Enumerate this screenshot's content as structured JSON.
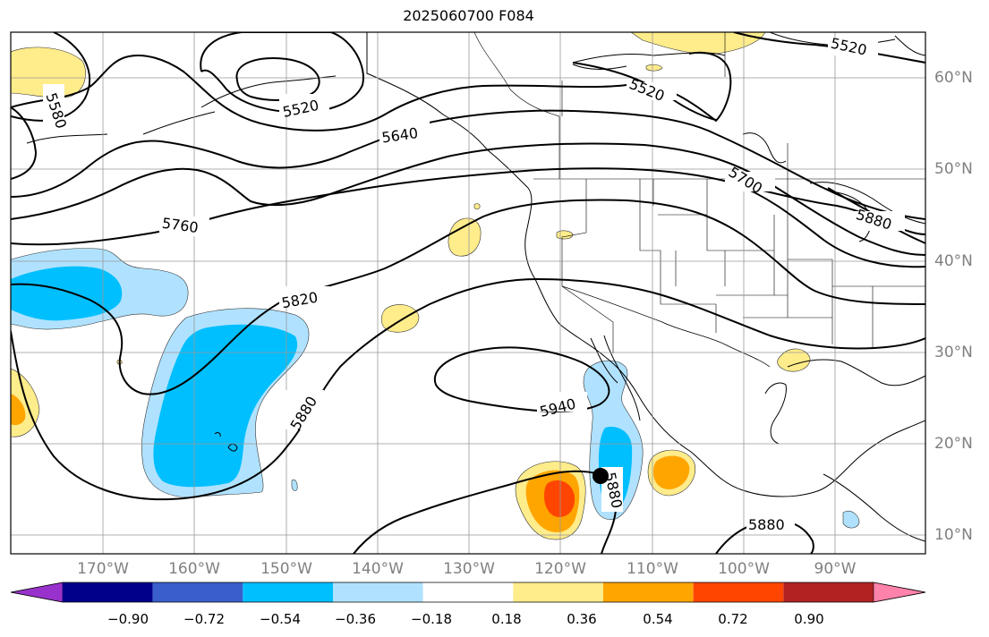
{
  "title": "2025060700 F084",
  "lon_labels": [
    "170°W",
    "160°W",
    "150°W",
    "140°W",
    "130°W",
    "120°W",
    "110°W",
    "100°W",
    "90°W"
  ],
  "lat_labels": [
    "60°N",
    "50°N",
    "40°N",
    "30°N",
    "20°N",
    "10°N"
  ],
  "colorbar": {
    "ticks": [
      "−0.90",
      "−0.72",
      "−0.54",
      "−0.36",
      "−0.18",
      "0.18",
      "0.36",
      "0.54",
      "0.72",
      "0.90"
    ],
    "colors": [
      "#9932cc",
      "#00008b",
      "#3a5fcd",
      "#00bfff",
      "#b0e2ff",
      "#ffffff",
      "#ffec8b",
      "#ffa500",
      "#ff4500",
      "#b22222",
      "#ff82ab"
    ]
  },
  "contour_labels": [
    {
      "text": "5520"
    },
    {
      "text": "5520"
    },
    {
      "text": "5520"
    },
    {
      "text": "5580"
    },
    {
      "text": "5640"
    },
    {
      "text": "5700"
    },
    {
      "text": "5760"
    },
    {
      "text": "5820"
    },
    {
      "text": "5880"
    },
    {
      "text": "5880"
    },
    {
      "text": "5880"
    },
    {
      "text": "5940"
    },
    {
      "text": "5880"
    }
  ],
  "storm_marker": {
    "lon": -115.5,
    "lat": 16.5
  }
}
